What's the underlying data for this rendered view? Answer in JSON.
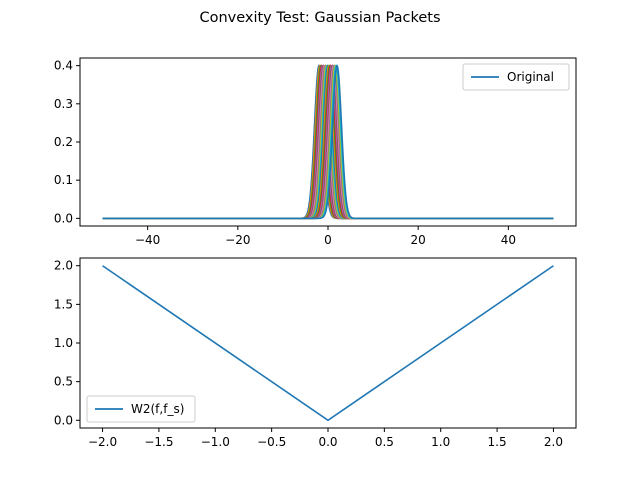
{
  "figure": {
    "title": "Convexity Test: Gaussian Packets"
  },
  "chart_data": [
    {
      "type": "line",
      "title": "",
      "xlabel": "",
      "ylabel": "",
      "xlim": [
        -55,
        55
      ],
      "ylim": [
        -0.02,
        0.42
      ],
      "x_ticks": [
        -40,
        -20,
        0,
        20,
        40
      ],
      "x_tick_labels": [
        "−40",
        "−20",
        "0",
        "20",
        "40"
      ],
      "y_ticks": [
        0.0,
        0.1,
        0.2,
        0.3,
        0.4
      ],
      "y_tick_labels": [
        "0.0",
        "0.1",
        "0.2",
        "0.3",
        "0.4"
      ],
      "grid": false,
      "legend_placement": "top-right",
      "legend_entries": [
        "Original"
      ],
      "x_range": [
        -50,
        50
      ],
      "peak": 0.4,
      "sigma": 1.0,
      "shifts": [
        -2.0,
        -1.8,
        -1.6,
        -1.4,
        -1.2,
        -1.0,
        -0.8,
        -0.6,
        -0.4,
        -0.2,
        0.0,
        0.2,
        0.4,
        0.6,
        0.8,
        1.0,
        1.2,
        1.4,
        1.6,
        1.8,
        2.0
      ],
      "colors": [
        "#1f77b4",
        "#ff7f0e",
        "#2ca02c",
        "#d62728",
        "#9467bd",
        "#8c564b",
        "#e377c2",
        "#7f7f7f",
        "#bcbd22",
        "#17becf"
      ]
    },
    {
      "type": "line",
      "title": "",
      "xlabel": "",
      "ylabel": "",
      "xlim": [
        -2.2,
        2.2
      ],
      "ylim": [
        -0.1,
        2.1
      ],
      "x_ticks": [
        -2.0,
        -1.5,
        -1.0,
        -0.5,
        0.0,
        0.5,
        1.0,
        1.5,
        2.0
      ],
      "x_tick_labels": [
        "−2.0",
        "−1.5",
        "−1.0",
        "−0.5",
        "0.0",
        "0.5",
        "1.0",
        "1.5",
        "2.0"
      ],
      "y_ticks": [
        0.0,
        0.5,
        1.0,
        1.5,
        2.0
      ],
      "y_tick_labels": [
        "0.0",
        "0.5",
        "1.0",
        "1.5",
        "2.0"
      ],
      "grid": false,
      "legend_placement": "bottom-left",
      "series": [
        {
          "name": "W2(f,f_s)",
          "color": "#1f77b4",
          "x": [
            -2.0,
            0.0,
            2.0
          ],
          "y": [
            2.0,
            0.0,
            2.0
          ]
        }
      ]
    }
  ]
}
